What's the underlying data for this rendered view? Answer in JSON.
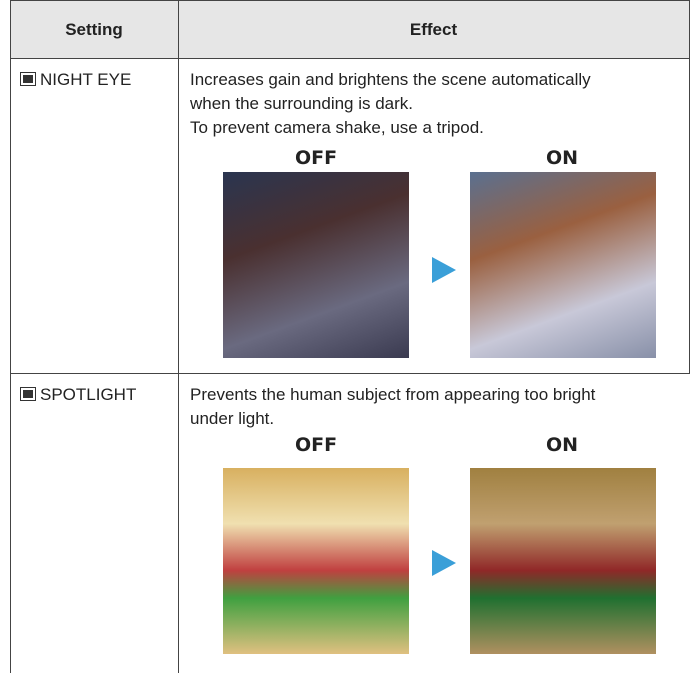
{
  "table": {
    "header": [
      "Setting",
      "Effect"
    ],
    "rows": [
      {
        "setting": "NIGHT EYE",
        "effect": [
          "Increases gain and brightens the scene automatically",
          "when the surrounding is dark.",
          "To prevent camera shake, use a tripod."
        ],
        "before": "OFF",
        "after": "ON"
      },
      {
        "setting": "SPOTLIGHT",
        "effect": [
          "Prevents the human subject from appearing too bright",
          "under light."
        ],
        "before": "OFF",
        "after": "ON"
      }
    ]
  }
}
